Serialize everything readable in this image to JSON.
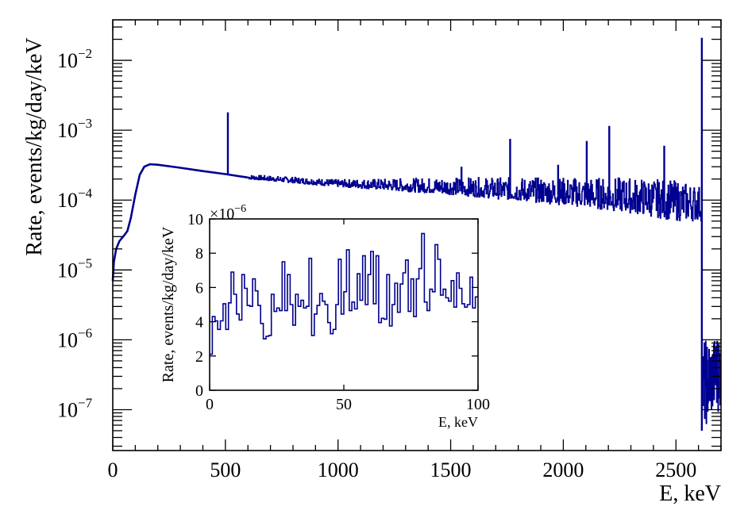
{
  "chart_data": [
    {
      "type": "line",
      "scale_y": "log",
      "xlabel": "E, keV",
      "ylabel": "Rate, events/kg/day/keV",
      "xlim": [
        0,
        2700
      ],
      "ylim": [
        2.6e-08,
        0.038
      ],
      "x_ticks": [
        "0",
        "500",
        "1000",
        "1500",
        "2000",
        "2500"
      ],
      "y_ticks": [
        {
          "base": "10",
          "exp": "−2"
        },
        {
          "base": "10",
          "exp": "−3"
        },
        {
          "base": "10",
          "exp": "−4"
        },
        {
          "base": "10",
          "exp": "−5"
        },
        {
          "base": "10",
          "exp": "−6"
        },
        {
          "base": "10",
          "exp": "−7"
        }
      ],
      "color": "#000090",
      "continuum": [
        [
          0,
          7e-06
        ],
        [
          5,
          1.3e-05
        ],
        [
          15,
          2e-05
        ],
        [
          30,
          2.6e-05
        ],
        [
          50,
          3.1e-05
        ],
        [
          65,
          3.6e-05
        ],
        [
          80,
          5.5e-05
        ],
        [
          100,
          0.00012
        ],
        [
          120,
          0.00023
        ],
        [
          140,
          0.0003
        ],
        [
          165,
          0.000325
        ],
        [
          200,
          0.00032
        ],
        [
          300,
          0.00029
        ],
        [
          400,
          0.00026
        ],
        [
          500,
          0.000235
        ],
        [
          600,
          0.00021
        ],
        [
          800,
          0.00019
        ],
        [
          1000,
          0.00017
        ],
        [
          1200,
          0.00016
        ],
        [
          1500,
          0.000145
        ],
        [
          1800,
          0.000125
        ],
        [
          2000,
          0.000115
        ],
        [
          2300,
          0.0001
        ],
        [
          2500,
          9e-05
        ],
        [
          2610,
          8.5e-05
        ]
      ],
      "fluctuation_band": [
        [
          600,
          0.0002,
          0.00023
        ],
        [
          1000,
          0.000155,
          0.000195
        ],
        [
          1500,
          0.00012,
          0.00021
        ],
        [
          2000,
          8.5e-05,
          0.00021
        ],
        [
          2300,
          6.5e-05,
          0.00021
        ],
        [
          2500,
          5e-05,
          0.00019
        ],
        [
          2612,
          5e-05,
          0.00016
        ]
      ],
      "peaks": [
        [
          511,
          0.0018
        ],
        [
          1548,
          0.0003
        ],
        [
          1764,
          0.00075
        ],
        [
          1977,
          0.00032
        ],
        [
          2104,
          0.0007
        ],
        [
          2204,
          0.00115
        ],
        [
          2448,
          0.0006
        ],
        [
          2615,
          0.021
        ]
      ],
      "tail_band": [
        [
          2618,
          5e-08,
          1e-06
        ],
        [
          2660,
          8e-08,
          1e-06
        ],
        [
          2700,
          1e-07,
          1.5e-06
        ]
      ]
    },
    {
      "type": "histogram",
      "xlabel": "E, keV",
      "ylabel": "Rate, events/kg/day/keV",
      "y_multiplier": {
        "base": "×10",
        "exp": "−6"
      },
      "xlim": [
        0,
        100
      ],
      "ylim": [
        0,
        10
      ],
      "x_ticks": [
        "0",
        "50",
        "100"
      ],
      "y_ticks": [
        "0",
        "2",
        "4",
        "6",
        "8",
        "10"
      ],
      "bin_width": 1,
      "color": "#000090",
      "values": [
        2.1,
        4.3,
        4.05,
        3.55,
        4.05,
        5.05,
        3.55,
        5.1,
        6.9,
        5.6,
        4.45,
        4.1,
        6.75,
        5.95,
        4.95,
        4.9,
        6.5,
        5.8,
        4.95,
        3.9,
        3.0,
        3.15,
        3.2,
        5.6,
        4.6,
        4.8,
        4.65,
        7.5,
        4.65,
        6.75,
        5.0,
        3.8,
        5.6,
        4.9,
        5.25,
        4.8,
        4.9,
        7.7,
        3.2,
        4.45,
        4.95,
        5.65,
        5.2,
        5.0,
        3.95,
        3.3,
        3.55,
        5.0,
        7.65,
        4.45,
        5.75,
        8.2,
        4.65,
        5.15,
        4.75,
        6.8,
        5.25,
        7.85,
        5.0,
        6.75,
        8.1,
        5.05,
        7.85,
        3.95,
        4.2,
        4.15,
        6.75,
        3.75,
        5.0,
        6.25,
        4.55,
        6.2,
        6.85,
        7.6,
        4.6,
        6.5,
        4.3,
        6.5,
        7.1,
        9.15,
        5.15,
        4.65,
        5.9,
        5.75,
        8.5,
        7.65,
        5.55,
        5.9,
        5.4,
        5.2,
        6.4,
        4.85,
        6.85,
        5.95,
        5.05,
        4.85,
        5.0,
        6.6,
        4.8,
        5.45
      ]
    }
  ]
}
